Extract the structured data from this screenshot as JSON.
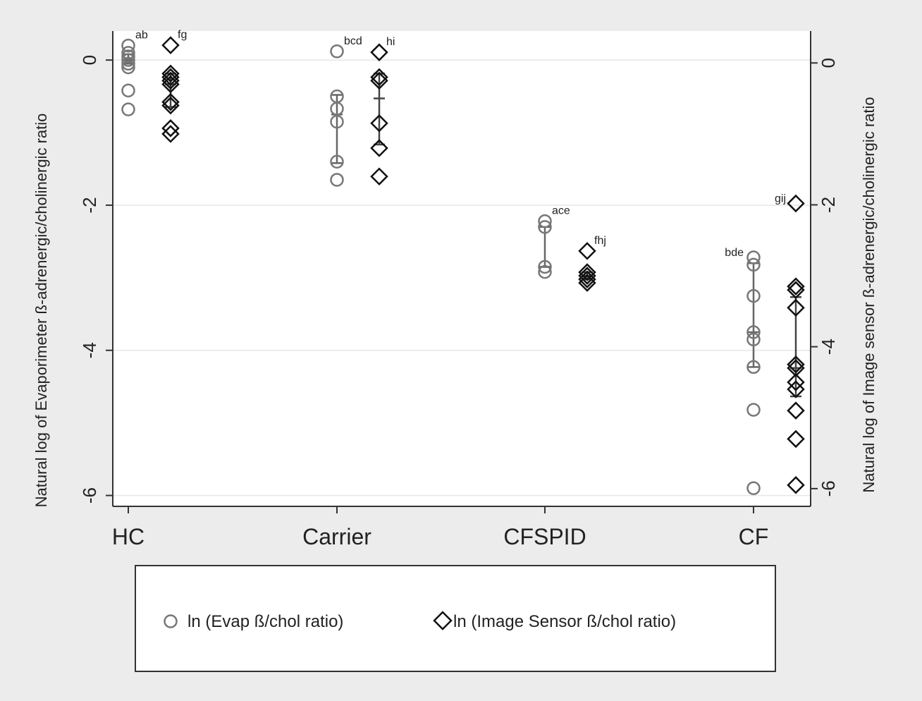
{
  "chart_data": {
    "type": "scatter",
    "categories": [
      "HC",
      "Carrier",
      "CFSPID",
      "CF"
    ],
    "ylabel_left": "Natural log of Evaporimeter ß-adrenergic/cholinergic ratio",
    "ylabel_right": "Natural log of Image sensor ß-adrenergic/cholinergic ratio",
    "ylim_left": [
      -6.15,
      0.4
    ],
    "ylim_right": [
      -6.25,
      0.45
    ],
    "yticks_left": [
      0,
      -2,
      -4,
      -6
    ],
    "yticks_right": [
      0,
      -2,
      -4,
      -6
    ],
    "grid": true,
    "legend_position": "bottom",
    "series": [
      {
        "name": "ln (Evap ß/chol ratio)",
        "marker": "circle",
        "axis": "left",
        "color": "#777777",
        "points": [
          {
            "cat": 0,
            "y": 0.2
          },
          {
            "cat": 0,
            "y": 0.1
          },
          {
            "cat": 0,
            "y": 0.05
          },
          {
            "cat": 0,
            "y": 0.0
          },
          {
            "cat": 0,
            "y": -0.05
          },
          {
            "cat": 0,
            "y": -0.1
          },
          {
            "cat": 0,
            "y": -0.42
          },
          {
            "cat": 0,
            "y": -0.68
          },
          {
            "cat": 1,
            "y": 0.12
          },
          {
            "cat": 1,
            "y": -0.5
          },
          {
            "cat": 1,
            "y": -0.67
          },
          {
            "cat": 1,
            "y": -0.85
          },
          {
            "cat": 1,
            "y": -1.4
          },
          {
            "cat": 1,
            "y": -1.65
          },
          {
            "cat": 2,
            "y": -2.22
          },
          {
            "cat": 2,
            "y": -2.3
          },
          {
            "cat": 2,
            "y": -2.85
          },
          {
            "cat": 2,
            "y": -2.92
          },
          {
            "cat": 3,
            "y": -2.72
          },
          {
            "cat": 3,
            "y": -2.82
          },
          {
            "cat": 3,
            "y": -3.25
          },
          {
            "cat": 3,
            "y": -3.75
          },
          {
            "cat": 3,
            "y": -3.85
          },
          {
            "cat": 3,
            "y": -4.23
          },
          {
            "cat": 3,
            "y": -4.82
          },
          {
            "cat": 3,
            "y": -5.9
          }
        ],
        "intervals": [
          {
            "cat": 0,
            "low": -0.05,
            "mid": 0.0,
            "high": 0.08
          },
          {
            "cat": 1,
            "low": -1.42,
            "mid": -0.75,
            "high": -0.48
          },
          {
            "cat": 2,
            "low": -2.85,
            "mid": -2.85,
            "high": -2.3
          },
          {
            "cat": 3,
            "low": -4.23,
            "mid": -3.75,
            "high": -2.8
          }
        ]
      },
      {
        "name": "ln (Image Sensor ß/chol ratio)",
        "marker": "diamond",
        "axis": "right",
        "color": "#111111",
        "points": [
          {
            "cat": 0,
            "y": 0.25
          },
          {
            "cat": 0,
            "y": -0.15
          },
          {
            "cat": 0,
            "y": -0.2
          },
          {
            "cat": 0,
            "y": -0.25
          },
          {
            "cat": 0,
            "y": -0.3
          },
          {
            "cat": 0,
            "y": -0.55
          },
          {
            "cat": 0,
            "y": -0.6
          },
          {
            "cat": 0,
            "y": -0.92
          },
          {
            "cat": 0,
            "y": -1.0
          },
          {
            "cat": 1,
            "y": 0.15
          },
          {
            "cat": 1,
            "y": -0.2
          },
          {
            "cat": 1,
            "y": -0.25
          },
          {
            "cat": 1,
            "y": -0.85
          },
          {
            "cat": 1,
            "y": -1.2
          },
          {
            "cat": 1,
            "y": -1.6
          },
          {
            "cat": 2,
            "y": -2.65
          },
          {
            "cat": 2,
            "y": -2.95
          },
          {
            "cat": 2,
            "y": -3.0
          },
          {
            "cat": 2,
            "y": -3.05
          },
          {
            "cat": 2,
            "y": -3.1
          },
          {
            "cat": 3,
            "y": -1.98
          },
          {
            "cat": 3,
            "y": -3.15
          },
          {
            "cat": 3,
            "y": -3.2
          },
          {
            "cat": 3,
            "y": -3.45
          },
          {
            "cat": 3,
            "y": -4.25
          },
          {
            "cat": 3,
            "y": -4.3
          },
          {
            "cat": 3,
            "y": -4.5
          },
          {
            "cat": 3,
            "y": -4.6
          },
          {
            "cat": 3,
            "y": -4.9
          },
          {
            "cat": 3,
            "y": -5.3
          },
          {
            "cat": 3,
            "y": -5.95
          }
        ],
        "intervals": [
          {
            "cat": 0,
            "low": -0.62,
            "mid": -0.3,
            "high": -0.15
          },
          {
            "cat": 1,
            "low": -1.15,
            "mid": -0.5,
            "high": -0.15
          },
          {
            "cat": 2,
            "low": -3.05,
            "mid": -3.0,
            "high": -2.95
          },
          {
            "cat": 3,
            "low": -4.7,
            "mid": -4.3,
            "high": -3.3
          }
        ]
      }
    ],
    "annotations": [
      {
        "text": "ab",
        "cat": 0,
        "series": 0,
        "y": 0.2
      },
      {
        "text": "fg",
        "cat": 0,
        "series": 1,
        "y": 0.25
      },
      {
        "text": "bcd",
        "cat": 1,
        "series": 0,
        "y": 0.12
      },
      {
        "text": "hi",
        "cat": 1,
        "series": 1,
        "y": 0.15
      },
      {
        "text": "ace",
        "cat": 2,
        "series": 0,
        "y": -2.22
      },
      {
        "text": "fhj",
        "cat": 2,
        "series": 1,
        "y": -2.65
      },
      {
        "text": "bde",
        "cat": 3,
        "series": 0,
        "y": -2.72
      },
      {
        "text": "gij",
        "cat": 3,
        "series": 1,
        "y": -1.98
      }
    ]
  }
}
